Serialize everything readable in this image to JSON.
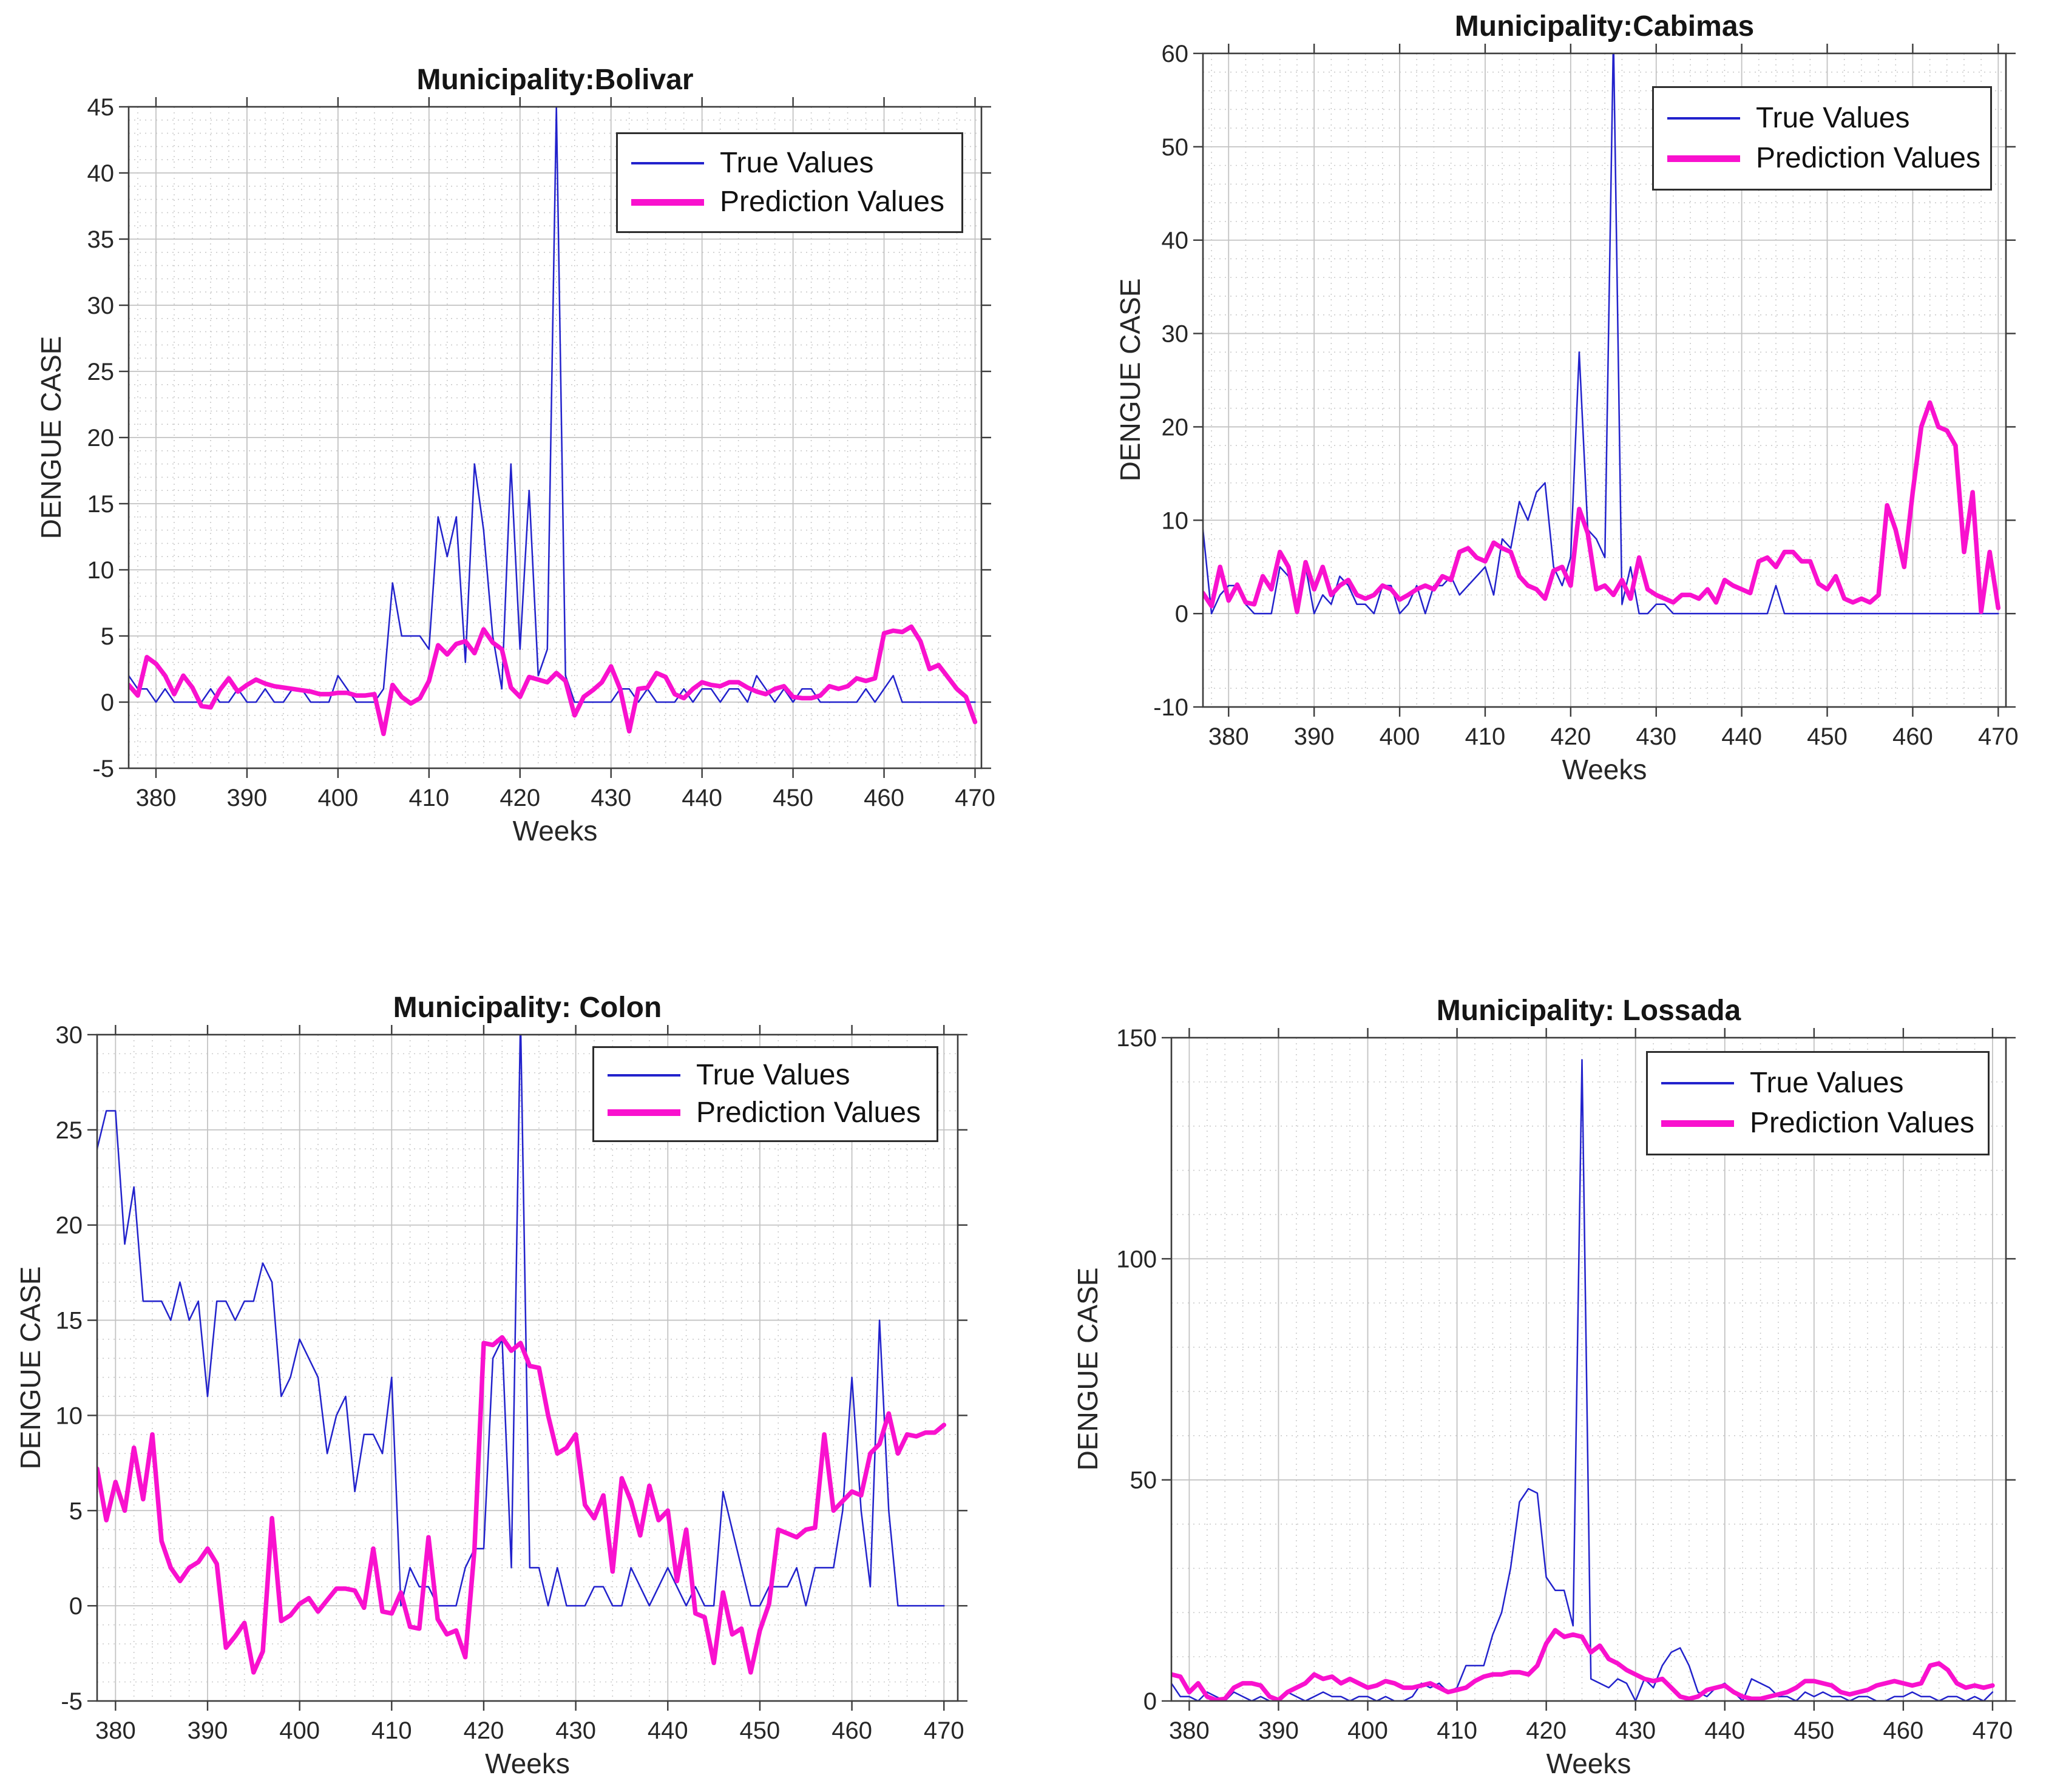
{
  "figure": {
    "background": "#ffffff",
    "true_color": "#2222cc",
    "pred_color": "#f911ce"
  },
  "chart_data": [
    {
      "type": "line",
      "title": "Municipality:Bolivar",
      "xlabel": "Weeks",
      "ylabel": "DENGUE CASE",
      "xlim": [
        377,
        470.7
      ],
      "ylim": [
        -5,
        45
      ],
      "xticks": [
        380,
        390,
        400,
        410,
        420,
        430,
        440,
        450,
        460,
        470
      ],
      "yticks": [
        -5,
        0,
        5,
        10,
        15,
        20,
        25,
        30,
        35,
        40,
        45
      ],
      "x_minor_step": 2,
      "y_minor_step": 1,
      "grid": true,
      "legend_position": "top-right",
      "x_start": 377,
      "series": [
        {
          "name": "True Values",
          "color": "#2222cc",
          "linewidth": 2.5,
          "values": [
            2,
            1,
            1,
            0,
            1,
            0,
            0,
            0,
            0,
            1,
            0,
            0,
            1,
            0,
            0,
            1,
            0,
            0,
            1,
            1,
            0,
            0,
            0,
            2,
            1,
            0,
            0,
            0,
            1,
            9,
            5,
            5,
            5,
            4,
            14,
            11,
            14,
            3,
            18,
            13,
            5,
            1,
            18,
            4,
            16,
            2,
            4,
            45,
            2,
            0,
            0,
            0,
            0,
            0,
            1,
            1,
            0,
            1,
            0,
            0,
            0,
            1,
            0,
            1,
            1,
            0,
            1,
            1,
            0,
            2,
            1,
            0,
            1,
            0,
            1,
            1,
            0,
            0,
            0,
            0,
            0,
            1,
            0,
            1,
            2,
            0,
            0,
            0,
            0,
            0,
            0,
            0,
            0,
            0
          ]
        },
        {
          "name": "Prediction Values",
          "color": "#f911ce",
          "linewidth": 7.5,
          "values": [
            1.3,
            0.5,
            3.4,
            2.9,
            2,
            0.6,
            2,
            1.1,
            -0.3,
            -0.4,
            0.9,
            1.8,
            0.8,
            1.3,
            1.7,
            1.4,
            1.2,
            1.1,
            1,
            0.9,
            0.8,
            0.6,
            0.6,
            0.7,
            0.7,
            0.5,
            0.5,
            0.6,
            -2.4,
            1.3,
            0.4,
            -0.1,
            0.3,
            1.6,
            4.3,
            3.6,
            4.4,
            4.6,
            3.7,
            5.5,
            4.5,
            4,
            1.1,
            0.4,
            1.9,
            1.7,
            1.5,
            2.2,
            1.6,
            -1,
            0.4,
            0.9,
            1.5,
            2.7,
            1,
            -2.2,
            1,
            1.1,
            2.2,
            1.9,
            0.6,
            0.3,
            1,
            1.5,
            1.3,
            1.2,
            1.5,
            1.5,
            1.1,
            0.8,
            0.6,
            1,
            1.2,
            0.4,
            0.3,
            0.3,
            0.5,
            1.2,
            1,
            1.2,
            1.8,
            1.6,
            1.8,
            5.2,
            5.4,
            5.3,
            5.7,
            4.6,
            2.5,
            2.8,
            1.9,
            1,
            0.4,
            -1.5
          ]
        }
      ]
    },
    {
      "type": "line",
      "title": "Municipality:Cabimas",
      "xlabel": "Weeks",
      "ylabel": "DENGUE CASE",
      "xlim": [
        377,
        470.9
      ],
      "ylim": [
        -10,
        60
      ],
      "xticks": [
        380,
        390,
        400,
        410,
        420,
        430,
        440,
        450,
        460,
        470
      ],
      "yticks": [
        -10,
        0,
        10,
        20,
        30,
        40,
        50,
        60
      ],
      "x_minor_step": 2,
      "y_minor_step": 2,
      "grid": true,
      "legend_position": "top-right",
      "x_start": 377,
      "series": [
        {
          "name": "True Values",
          "color": "#2222cc",
          "linewidth": 2.5,
          "values": [
            9,
            0,
            2,
            3,
            3,
            1,
            0,
            0,
            0,
            5,
            4,
            0,
            5,
            0,
            2,
            1,
            4,
            3,
            1,
            1,
            0,
            3,
            3,
            0,
            1,
            3,
            0,
            3,
            3,
            4,
            2,
            3,
            4,
            5,
            2,
            8,
            7,
            12,
            10,
            13,
            14,
            5,
            3,
            6,
            28,
            9,
            8,
            6,
            62,
            1,
            5,
            0,
            0,
            1,
            1,
            0,
            0,
            0,
            0,
            0,
            0,
            0,
            0,
            0,
            0,
            0,
            0,
            3,
            0,
            0,
            0,
            0,
            0,
            0,
            0,
            0,
            0,
            0,
            0,
            0,
            0,
            0,
            0,
            0,
            0,
            0,
            0,
            0,
            0,
            0,
            0,
            0,
            0,
            0
          ]
        },
        {
          "name": "Prediction Values",
          "color": "#f911ce",
          "linewidth": 7.5,
          "values": [
            2.2,
            0.8,
            5,
            1.4,
            3.1,
            1.2,
            1,
            4,
            2.6,
            6.6,
            5,
            0.2,
            5.5,
            2.6,
            5,
            2,
            3,
            3.6,
            2,
            1.6,
            2,
            3,
            2.6,
            1.5,
            2,
            2.6,
            3,
            2.6,
            4,
            3.6,
            6.6,
            7,
            6,
            5.6,
            7.6,
            7,
            6.6,
            4,
            3,
            2.6,
            1.6,
            4.6,
            5,
            3,
            11.2,
            8.6,
            2.6,
            3,
            2,
            3.6,
            1.6,
            6,
            2.6,
            2,
            1.6,
            1.2,
            2,
            2,
            1.6,
            2.6,
            1.2,
            3.6,
            3,
            2.6,
            2.2,
            5.6,
            6,
            5,
            6.6,
            6.6,
            5.6,
            5.6,
            3.2,
            2.6,
            4,
            1.6,
            1.2,
            1.6,
            1.2,
            2,
            11.6,
            9,
            5,
            13,
            20,
            22.6,
            20,
            19.6,
            18,
            6.6,
            13,
            0.2,
            6.6,
            0.6
          ]
        }
      ]
    },
    {
      "type": "line",
      "title": "Municipality: Colon",
      "xlabel": "Weeks",
      "ylabel": "DENGUE CASE",
      "xlim": [
        378,
        471.5
      ],
      "ylim": [
        -5,
        30
      ],
      "xticks": [
        380,
        390,
        400,
        410,
        420,
        430,
        440,
        450,
        460,
        470
      ],
      "yticks": [
        -5,
        0,
        5,
        10,
        15,
        20,
        25,
        30
      ],
      "x_minor_step": 2,
      "y_minor_step": 1,
      "grid": true,
      "legend_position": "top-right",
      "x_start": 378,
      "series": [
        {
          "name": "True Values",
          "color": "#2222cc",
          "linewidth": 2.5,
          "values": [
            24,
            26,
            26,
            19,
            22,
            16,
            16,
            16,
            15,
            17,
            15,
            16,
            11,
            16,
            16,
            15,
            16,
            16,
            18,
            17,
            11,
            12,
            14,
            13,
            12,
            8,
            10,
            11,
            6,
            9,
            9,
            8,
            12,
            0,
            2,
            1,
            1,
            0,
            0,
            0,
            2,
            3,
            3,
            13,
            14,
            2,
            31,
            2,
            2,
            0,
            2,
            0,
            0,
            0,
            1,
            1,
            0,
            0,
            2,
            1,
            0,
            1,
            2,
            1,
            0,
            1,
            0,
            0,
            6,
            4,
            2,
            0,
            0,
            1,
            1,
            1,
            2,
            0,
            2,
            2,
            2,
            5,
            12,
            5,
            1,
            15,
            5,
            0,
            0,
            0,
            0,
            0,
            0
          ]
        },
        {
          "name": "Prediction Values",
          "color": "#f911ce",
          "linewidth": 7.5,
          "values": [
            7.2,
            4.5,
            6.5,
            5,
            8.3,
            5.6,
            9,
            3.4,
            2,
            1.3,
            2,
            2.3,
            3,
            2.2,
            -2.2,
            -1.6,
            -0.9,
            -3.5,
            -2.4,
            4.6,
            -0.8,
            -0.5,
            0.1,
            0.4,
            -0.3,
            0.3,
            0.9,
            0.9,
            0.8,
            -0.1,
            3,
            -0.3,
            -0.4,
            0.7,
            -1.1,
            -1.2,
            3.6,
            -0.7,
            -1.5,
            -1.3,
            -2.7,
            3,
            13.8,
            13.7,
            14.1,
            13.4,
            13.8,
            12.6,
            12.5,
            10,
            8,
            8.3,
            9,
            5.3,
            4.6,
            5.8,
            1.8,
            6.7,
            5.5,
            3.7,
            6.3,
            4.5,
            5,
            1.3,
            4,
            -0.4,
            -0.6,
            -3,
            0.7,
            -1.5,
            -1.2,
            -3.5,
            -1.3,
            0.1,
            4,
            3.8,
            3.6,
            4,
            4.1,
            9,
            5,
            5.5,
            6,
            5.8,
            8,
            8.5,
            10.1,
            8,
            9,
            8.9,
            9.1,
            9.1,
            9.5
          ]
        }
      ]
    },
    {
      "type": "line",
      "title": "Municipality: Lossada",
      "xlabel": "Weeks",
      "ylabel": "DENGUE CASE",
      "xlim": [
        378,
        471.5
      ],
      "ylim": [
        0,
        150
      ],
      "xticks": [
        380,
        390,
        400,
        410,
        420,
        430,
        440,
        450,
        460,
        470
      ],
      "yticks": [
        0,
        50,
        100,
        150
      ],
      "x_minor_step": 2,
      "y_minor_step": 10,
      "grid": true,
      "legend_position": "top-right",
      "x_start": 378,
      "series": [
        {
          "name": "True Values",
          "color": "#2222cc",
          "linewidth": 2.5,
          "values": [
            4,
            1,
            1,
            0,
            2,
            1,
            0,
            2,
            1,
            0,
            1,
            0,
            0,
            2,
            1,
            0,
            1,
            2,
            1,
            1,
            0,
            1,
            1,
            0,
            1,
            0,
            0,
            1,
            4,
            3,
            4,
            2,
            3,
            8,
            8,
            8,
            15,
            20,
            30,
            45,
            48,
            47,
            28,
            25,
            25,
            17,
            145,
            5,
            4,
            3,
            5,
            4,
            0,
            5,
            3,
            8,
            11,
            12,
            8,
            2,
            1,
            3,
            4,
            2,
            0,
            5,
            4,
            3,
            1,
            1,
            0,
            2,
            1,
            2,
            1,
            1,
            0,
            1,
            1,
            0,
            0,
            1,
            1,
            2,
            1,
            1,
            0,
            1,
            1,
            0,
            1,
            0,
            2
          ]
        },
        {
          "name": "Prediction Values",
          "color": "#f911ce",
          "linewidth": 7.5,
          "values": [
            6,
            5.5,
            2,
            4,
            1,
            0.2,
            0.5,
            3,
            4,
            4,
            3.5,
            1,
            0.2,
            2,
            3,
            4,
            6,
            5,
            5.5,
            4,
            5,
            4,
            3,
            3.5,
            4.5,
            4,
            3,
            3,
            3.5,
            4,
            3,
            2,
            2.5,
            3,
            4.5,
            5.5,
            6,
            6,
            6.5,
            6.5,
            6,
            8,
            13,
            16,
            14.5,
            15,
            14.5,
            11,
            12.5,
            9.5,
            8.5,
            7,
            6,
            5,
            4.5,
            5,
            3,
            1,
            0.5,
            1,
            2.5,
            3,
            3.5,
            2,
            1,
            0.5,
            0.5,
            1,
            1.5,
            2,
            3,
            4.5,
            4.5,
            4,
            3.5,
            2,
            1.5,
            2,
            2.5,
            3.5,
            4,
            4.5,
            4,
            3.5,
            4,
            8,
            8.5,
            7,
            4,
            3,
            3.5,
            3,
            3.5
          ]
        }
      ]
    }
  ]
}
